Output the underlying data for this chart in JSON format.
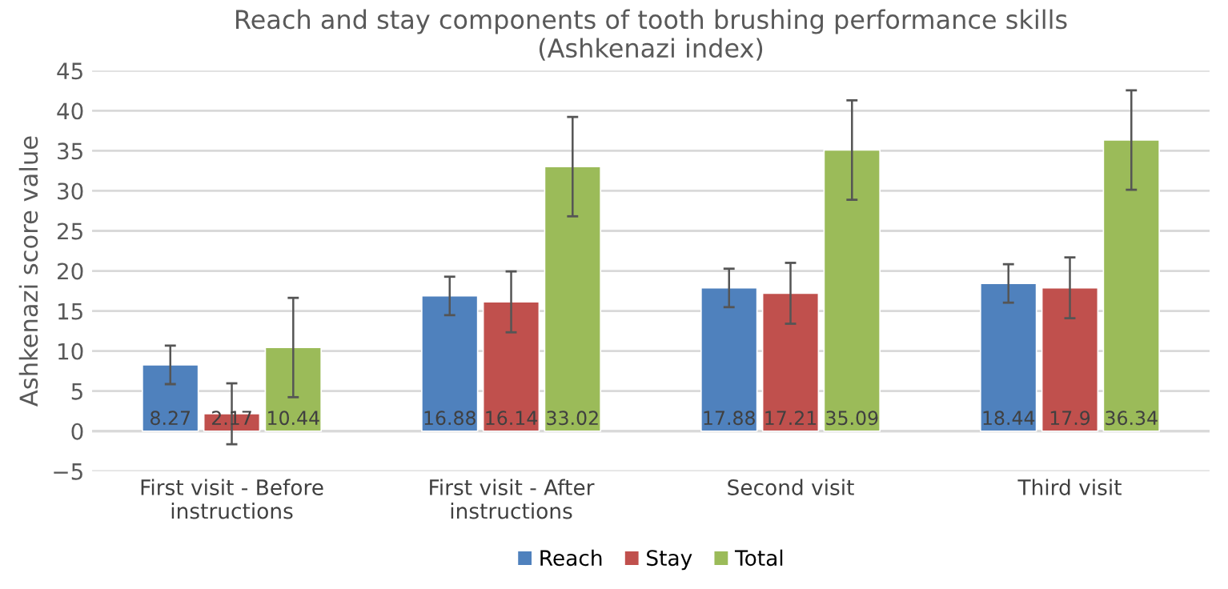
{
  "chart_data": {
    "type": "bar",
    "title": "Reach and stay components of tooth brushing performance skills\n(Ashkenazi index)",
    "ylabel": "Ashkenazi score value",
    "categories": [
      "First visit - Before\ninstructions",
      "First visit - After\ninstructions",
      "Second visit",
      "Third visit"
    ],
    "series": [
      {
        "name": "Reach",
        "color": "#4f81bd",
        "values": [
          8.27,
          16.88,
          17.88,
          18.44
        ],
        "errors": [
          2.4,
          2.4,
          2.4,
          2.4
        ]
      },
      {
        "name": "Stay",
        "color": "#c0504d",
        "values": [
          2.17,
          16.14,
          17.21,
          17.9
        ],
        "errors": [
          3.8,
          3.8,
          3.8,
          3.8
        ]
      },
      {
        "name": "Total",
        "color": "#9bbb59",
        "values": [
          10.44,
          33.02,
          35.09,
          36.34
        ],
        "errors": [
          6.2,
          6.2,
          6.2,
          6.2
        ]
      }
    ],
    "ylim": [
      -5,
      45
    ],
    "yticks": [
      {
        "value": -5,
        "label": "−5"
      },
      0,
      5,
      10,
      15,
      20,
      25,
      30,
      35,
      40,
      45
    ],
    "grid": "y",
    "legend": "bottom",
    "data_labels": true
  }
}
